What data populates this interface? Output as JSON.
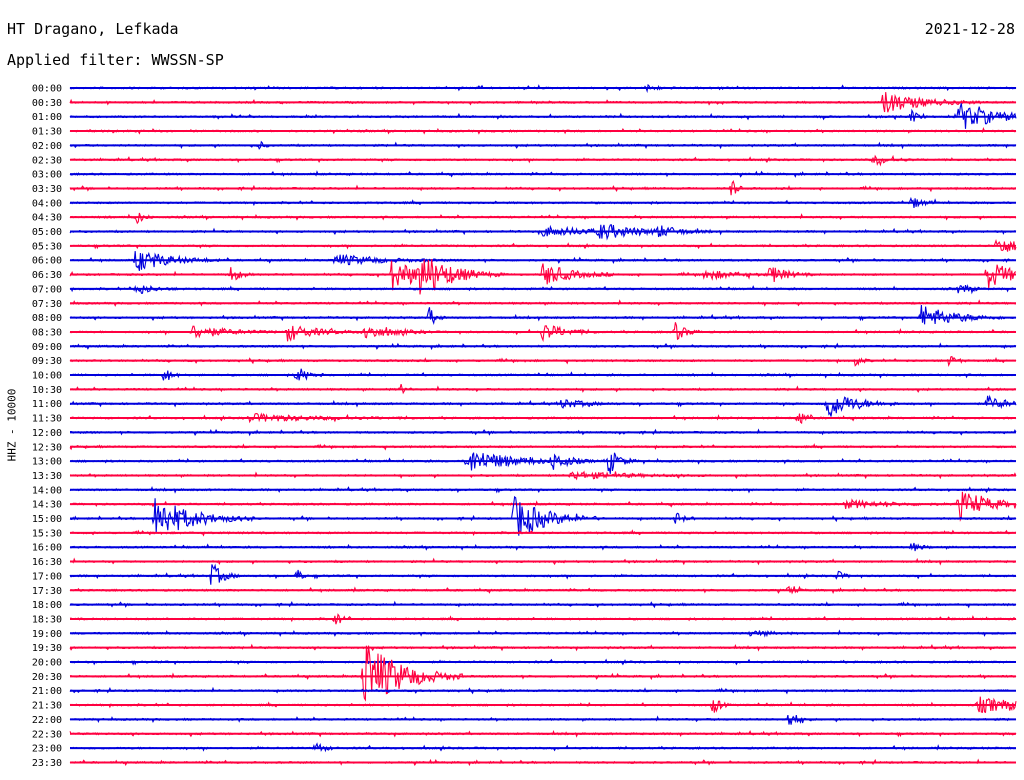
{
  "header": {
    "station": "HT Dragano, Lefkada",
    "date": "2021-12-28",
    "filter": "Applied filter: WWSSN-SP"
  },
  "chart_data": {
    "type": "line",
    "title": "HT Dragano, Lefkada",
    "ylabel": "HHZ - 10000",
    "colors": [
      "#0000dd",
      "#ff0040"
    ],
    "rows": [
      "00:00",
      "00:30",
      "01:00",
      "01:30",
      "02:00",
      "02:30",
      "03:00",
      "03:30",
      "04:00",
      "04:30",
      "05:00",
      "05:30",
      "06:00",
      "06:30",
      "07:00",
      "07:30",
      "08:00",
      "08:30",
      "09:00",
      "09:30",
      "10:00",
      "10:30",
      "11:00",
      "11:30",
      "12:00",
      "12:30",
      "13:00",
      "13:30",
      "14:00",
      "14:30",
      "15:00",
      "15:30",
      "16:00",
      "16:30",
      "17:00",
      "17:30",
      "18:00",
      "18:30",
      "19:00",
      "19:30",
      "20:00",
      "20:30",
      "21:00",
      "21:30",
      "22:00",
      "22:30",
      "23:00",
      "23:30"
    ],
    "events": [
      {
        "row": "00:00",
        "t": 0.61,
        "a": 3,
        "d": 0.01
      },
      {
        "row": "00:30",
        "t": 0.86,
        "a": 11,
        "d": 0.035
      },
      {
        "row": "01:00",
        "t": 0.94,
        "a": 14,
        "d": 0.035
      },
      {
        "row": "01:00",
        "t": 0.89,
        "a": 8,
        "d": 0.005
      },
      {
        "row": "02:00",
        "t": 0.2,
        "a": 5,
        "d": 0.004
      },
      {
        "row": "02:30",
        "t": 0.85,
        "a": 5,
        "d": 0.015
      },
      {
        "row": "03:30",
        "t": 0.7,
        "a": 12,
        "d": 0.004
      },
      {
        "row": "04:00",
        "t": 0.89,
        "a": 6,
        "d": 0.01
      },
      {
        "row": "04:30",
        "t": 0.07,
        "a": 8,
        "d": 0.006
      },
      {
        "row": "05:00",
        "t": 0.5,
        "a": 5,
        "d": 0.05
      },
      {
        "row": "05:00",
        "t": 0.56,
        "a": 7,
        "d": 0.035
      },
      {
        "row": "05:00",
        "t": 0.62,
        "a": 5,
        "d": 0.02
      },
      {
        "row": "05:30",
        "t": 0.98,
        "a": 10,
        "d": 0.02
      },
      {
        "row": "06:00",
        "t": 0.07,
        "a": 12,
        "d": 0.03
      },
      {
        "row": "06:00",
        "t": 0.28,
        "a": 6,
        "d": 0.04
      },
      {
        "row": "06:30",
        "t": 0.34,
        "a": 16,
        "d": 0.03
      },
      {
        "row": "06:30",
        "t": 0.37,
        "a": 18,
        "d": 0.03
      },
      {
        "row": "06:30",
        "t": 0.17,
        "a": 9,
        "d": 0.008
      },
      {
        "row": "06:30",
        "t": 0.5,
        "a": 12,
        "d": 0.025
      },
      {
        "row": "06:30",
        "t": 0.67,
        "a": 5,
        "d": 0.03
      },
      {
        "row": "06:30",
        "t": 0.74,
        "a": 9,
        "d": 0.015
      },
      {
        "row": "06:30",
        "t": 0.97,
        "a": 15,
        "d": 0.025
      },
      {
        "row": "07:00",
        "t": 0.07,
        "a": 6,
        "d": 0.015
      },
      {
        "row": "07:00",
        "t": 0.94,
        "a": 6,
        "d": 0.01
      },
      {
        "row": "08:00",
        "t": 0.9,
        "a": 13,
        "d": 0.03
      },
      {
        "row": "08:00",
        "t": 0.38,
        "a": 10,
        "d": 0.006
      },
      {
        "row": "08:30",
        "t": 0.13,
        "a": 7,
        "d": 0.03
      },
      {
        "row": "08:30",
        "t": 0.23,
        "a": 9,
        "d": 0.025
      },
      {
        "row": "08:30",
        "t": 0.31,
        "a": 8,
        "d": 0.025
      },
      {
        "row": "08:30",
        "t": 0.5,
        "a": 9,
        "d": 0.02
      },
      {
        "row": "08:30",
        "t": 0.64,
        "a": 9,
        "d": 0.01
      },
      {
        "row": "09:30",
        "t": 0.83,
        "a": 5,
        "d": 0.006
      },
      {
        "row": "09:30",
        "t": 0.93,
        "a": 6,
        "d": 0.006
      },
      {
        "row": "10:00",
        "t": 0.1,
        "a": 9,
        "d": 0.006
      },
      {
        "row": "10:00",
        "t": 0.24,
        "a": 9,
        "d": 0.01
      },
      {
        "row": "10:30",
        "t": 0.35,
        "a": 5,
        "d": 0.004
      },
      {
        "row": "11:00",
        "t": 0.8,
        "a": 16,
        "d": 0.025
      },
      {
        "row": "11:00",
        "t": 0.52,
        "a": 5,
        "d": 0.02
      },
      {
        "row": "11:00",
        "t": 0.97,
        "a": 7,
        "d": 0.02
      },
      {
        "row": "11:30",
        "t": 0.77,
        "a": 10,
        "d": 0.006
      },
      {
        "row": "11:30",
        "t": 0.19,
        "a": 4,
        "d": 0.06
      },
      {
        "row": "13:00",
        "t": 0.42,
        "a": 13,
        "d": 0.04
      },
      {
        "row": "13:00",
        "t": 0.51,
        "a": 8,
        "d": 0.015
      },
      {
        "row": "13:00",
        "t": 0.57,
        "a": 14,
        "d": 0.01
      },
      {
        "row": "13:30",
        "t": 0.53,
        "a": 4,
        "d": 0.05
      },
      {
        "row": "14:30",
        "t": 0.94,
        "a": 14,
        "d": 0.03
      },
      {
        "row": "14:30",
        "t": 0.82,
        "a": 4,
        "d": 0.04
      },
      {
        "row": "15:00",
        "t": 0.09,
        "a": 22,
        "d": 0.035
      },
      {
        "row": "15:00",
        "t": 0.47,
        "a": 22,
        "d": 0.03
      },
      {
        "row": "15:00",
        "t": 0.64,
        "a": 6,
        "d": 0.008
      },
      {
        "row": "16:00",
        "t": 0.89,
        "a": 5,
        "d": 0.008
      },
      {
        "row": "17:00",
        "t": 0.15,
        "a": 13,
        "d": 0.01
      },
      {
        "row": "17:00",
        "t": 0.24,
        "a": 8,
        "d": 0.004
      },
      {
        "row": "17:00",
        "t": 0.81,
        "a": 6,
        "d": 0.006
      },
      {
        "row": "17:30",
        "t": 0.76,
        "a": 5,
        "d": 0.006
      },
      {
        "row": "18:30",
        "t": 0.28,
        "a": 8,
        "d": 0.006
      },
      {
        "row": "19:00",
        "t": 0.72,
        "a": 4,
        "d": 0.015
      },
      {
        "row": "20:30",
        "t": 0.31,
        "a": 38,
        "d": 0.035
      },
      {
        "row": "21:30",
        "t": 0.68,
        "a": 10,
        "d": 0.006
      },
      {
        "row": "21:30",
        "t": 0.96,
        "a": 8,
        "d": 0.045
      },
      {
        "row": "22:00",
        "t": 0.76,
        "a": 10,
        "d": 0.008
      },
      {
        "row": "23:00",
        "t": 0.26,
        "a": 6,
        "d": 0.008
      }
    ]
  }
}
